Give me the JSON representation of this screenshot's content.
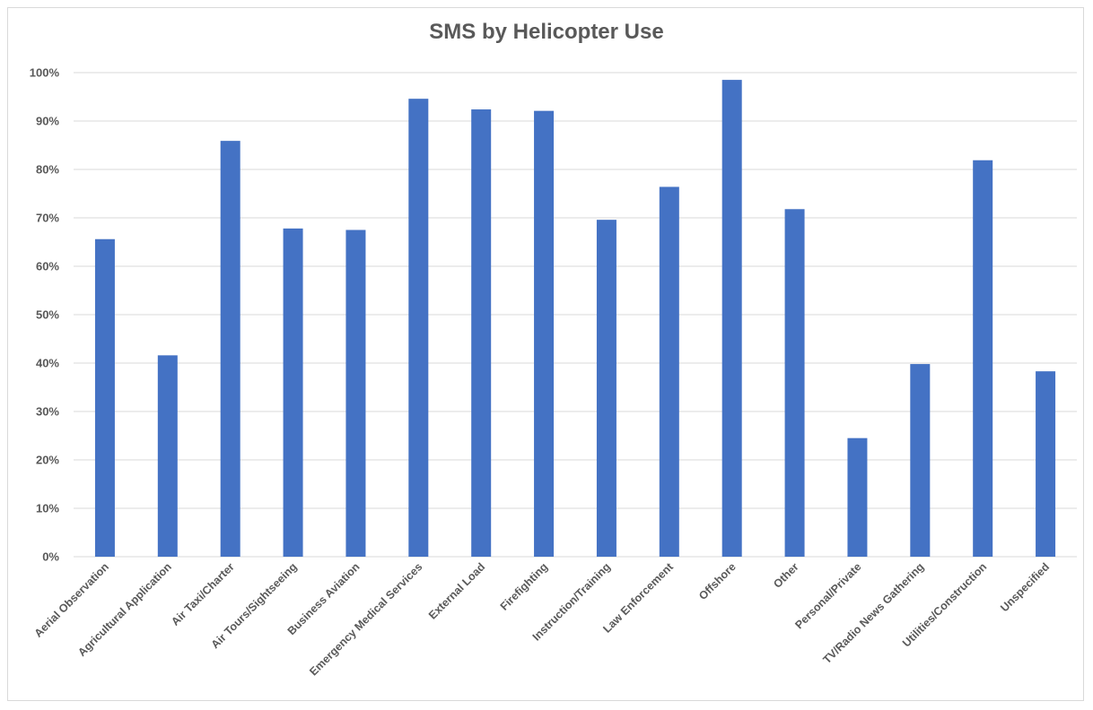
{
  "chart_data": {
    "type": "bar",
    "title": "SMS by Helicopter Use",
    "xlabel": "",
    "ylabel": "",
    "ylim": [
      0,
      100
    ],
    "y_ticks": [
      "0%",
      "10%",
      "20%",
      "30%",
      "40%",
      "50%",
      "60%",
      "70%",
      "80%",
      "90%",
      "100%"
    ],
    "grid": true,
    "legend": "none",
    "bar_color": "#4472C4",
    "categories": [
      "Aerial Observation",
      "Agricultural Application",
      "Air Taxi/Charter",
      "Air Tours/Sightseeing",
      "Business Aviation",
      "Emergency Medical Services",
      "External Load",
      "Firefighting",
      "Instruction/Training",
      "Law Enforcement",
      "Offshore",
      "Other",
      "Personal/Private",
      "TV/Radio News Gathering",
      "Utilities/Construction",
      "Unspecified"
    ],
    "values": [
      65.6,
      41.6,
      85.9,
      67.8,
      67.5,
      94.6,
      92.4,
      92.1,
      69.6,
      76.4,
      98.5,
      71.8,
      24.5,
      39.8,
      81.9,
      38.3
    ]
  }
}
